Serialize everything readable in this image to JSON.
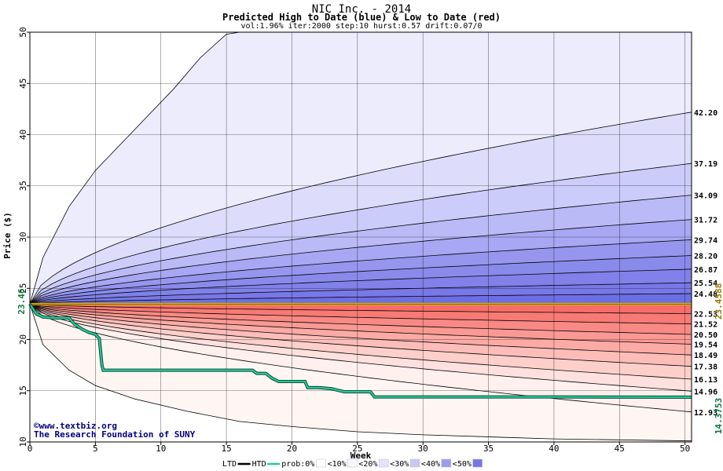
{
  "chart_data": {
    "type": "area",
    "title": "NIC Inc. - 2014",
    "subtitle": "Predicted High to Date (blue) &  Low to Date (red)",
    "params": "vol:1.96% iter:2000 step:10 hurst:0.57 drift:0.07/0",
    "xlabel": "Week",
    "ylabel": "Price ($)",
    "xlim": [
      0,
      50.5
    ],
    "ylim": [
      10,
      50
    ],
    "xticks": [
      0,
      5,
      10,
      15,
      20,
      25,
      30,
      35,
      40,
      45,
      50
    ],
    "yticks": [
      10,
      15,
      20,
      25,
      30,
      35,
      40,
      45,
      50
    ],
    "grid": true,
    "start_price": 23.46,
    "start_price_label": "23.46",
    "current_price": 23.4588,
    "current_price_label": "23.4588",
    "htd_line_label": "14.3753",
    "high_bands": [
      {
        "end": 24.48,
        "label": "24.48"
      },
      {
        "end": 25.54,
        "label": "25.54"
      },
      {
        "end": 26.87,
        "label": "26.87"
      },
      {
        "end": 28.2,
        "label": "28.20"
      },
      {
        "end": 29.74,
        "label": "29.74"
      },
      {
        "end": 31.72,
        "label": "31.72"
      },
      {
        "end": 34.09,
        "label": "34.09"
      },
      {
        "end": 37.19,
        "label": "37.19"
      },
      {
        "end": 42.2,
        "label": "42.20"
      }
    ],
    "low_bands": [
      {
        "end": 22.53,
        "label": "22.53"
      },
      {
        "end": 21.52,
        "label": "21.52"
      },
      {
        "end": 20.5,
        "label": "20.50"
      },
      {
        "end": 19.54,
        "label": "19.54"
      },
      {
        "end": 18.49,
        "label": "18.49"
      },
      {
        "end": 17.38,
        "label": "17.38"
      },
      {
        "end": 16.13,
        "label": "16.13"
      },
      {
        "end": 14.96,
        "label": "14.96"
      },
      {
        "end": 12.93,
        "label": "12.93"
      }
    ],
    "outer_high": [
      [
        0,
        23.46
      ],
      [
        1,
        28
      ],
      [
        3,
        33
      ],
      [
        5,
        36.5
      ],
      [
        8,
        40.5
      ],
      [
        11,
        44.5
      ],
      [
        13,
        47.5
      ],
      [
        15,
        49.8
      ],
      [
        16,
        50
      ]
    ],
    "outer_low": [
      [
        0,
        23.46
      ],
      [
        1,
        19.5
      ],
      [
        3,
        17
      ],
      [
        5,
        15.5
      ],
      [
        8,
        14.2
      ],
      [
        12,
        13
      ],
      [
        16,
        12
      ],
      [
        20,
        11.5
      ],
      [
        25,
        11
      ],
      [
        30,
        10.7
      ],
      [
        40,
        10.3
      ],
      [
        50.5,
        10.1
      ]
    ],
    "htd": [
      [
        0,
        23.46
      ],
      [
        0.5,
        22.5
      ],
      [
        1,
        22.2
      ],
      [
        2,
        22.1
      ],
      [
        3,
        22.1
      ],
      [
        3.4,
        21.5
      ],
      [
        4,
        21
      ],
      [
        4.5,
        20.7
      ],
      [
        5,
        20.5
      ],
      [
        5.3,
        20.1
      ],
      [
        5.5,
        17.5
      ],
      [
        5.6,
        17.0
      ],
      [
        10,
        17.0
      ],
      [
        15,
        17.0
      ],
      [
        17,
        17.0
      ],
      [
        17.3,
        16.7
      ],
      [
        18,
        16.7
      ],
      [
        18.5,
        16.2
      ],
      [
        19,
        15.9
      ],
      [
        20,
        15.9
      ],
      [
        21,
        15.9
      ],
      [
        21.2,
        15.3
      ],
      [
        22,
        15.3
      ],
      [
        23,
        15.2
      ],
      [
        24,
        14.9
      ],
      [
        26,
        14.9
      ],
      [
        26.3,
        14.4
      ],
      [
        30,
        14.4
      ],
      [
        40,
        14.4
      ],
      [
        50.5,
        14.3753
      ]
    ]
  },
  "colors": {
    "high_bands": [
      "#ddddfb",
      "#ccccfa",
      "#babaf6",
      "#a7a7f3",
      "#9696ef",
      "#8a8aeb",
      "#8181e9",
      "#7878e7",
      "#6e6ee4"
    ],
    "low_bands": [
      "#fff0ee",
      "#fee1de",
      "#fdcfcb",
      "#fcbdb8",
      "#fbaaa5",
      "#fa9994",
      "#f98984",
      "#f87a75",
      "#f86d6a"
    ],
    "outer_high": "#ececfd",
    "outer_low": "#fff6f4",
    "htd_line": "#22cc99",
    "price_line": "#e8b400",
    "axis_label_green": "#0a7a3a",
    "axis_label_gold": "#9b7400",
    "copyright": "#000080"
  },
  "copyright": "©www.textbiz.org",
  "foundation": "The Research Foundation of SUNY",
  "legend": [
    {
      "label": "LTD",
      "type": "line",
      "color": "#000000"
    },
    {
      "label": "HTD",
      "type": "line",
      "color": "#22cc99"
    },
    {
      "label": "prob:0%",
      "type": "swatch",
      "color": "#ffffff"
    },
    {
      "label": "<10%",
      "type": "swatch",
      "color": "#f6f6ff"
    },
    {
      "label": "<20%",
      "type": "swatch",
      "color": "#e3e3fb"
    },
    {
      "label": "<30%",
      "type": "swatch",
      "color": "#c8c8f6"
    },
    {
      "label": "<40%",
      "type": "swatch",
      "color": "#9c9cef"
    },
    {
      "label": "<50%",
      "type": "swatch",
      "color": "#7676e6"
    }
  ]
}
